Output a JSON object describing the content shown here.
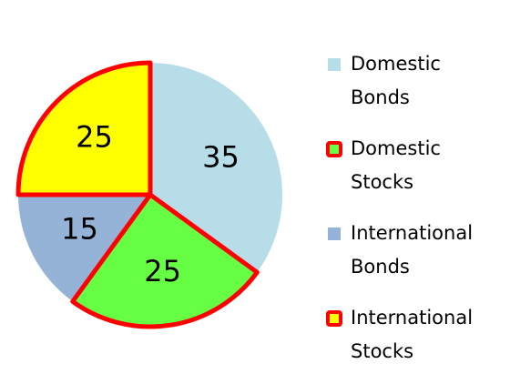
{
  "chart_data": {
    "type": "pie",
    "categories": [
      "Domestic Bonds",
      "Domestic Stocks",
      "International Bonds",
      "International Stocks"
    ],
    "values": [
      35,
      25,
      15,
      25
    ],
    "colors": [
      "#b7dde8",
      "#66ff44",
      "#95b3d7",
      "#ffff00"
    ],
    "edge_colors": [
      null,
      "#ff0000",
      null,
      "#ff0000"
    ],
    "legend": "right"
  }
}
